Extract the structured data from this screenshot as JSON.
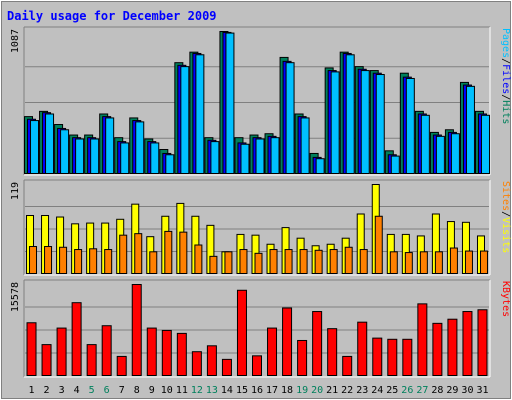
{
  "chart_data": {
    "type": "bar",
    "title": "Daily usage for December 2009",
    "categories": [
      "1",
      "2",
      "3",
      "4",
      "5",
      "6",
      "7",
      "8",
      "9",
      "10",
      "11",
      "12",
      "13",
      "14",
      "15",
      "16",
      "17",
      "18",
      "19",
      "20",
      "21",
      "22",
      "23",
      "24",
      "25",
      "26",
      "27",
      "28",
      "29",
      "30",
      "31"
    ],
    "weekend_days": [
      "5",
      "6",
      "12",
      "13",
      "19",
      "20",
      "26",
      "27"
    ],
    "panels": [
      {
        "name": "pages-files-hits",
        "max_label": "1087",
        "ymax": 1087,
        "legend": [
          {
            "text": "Pages",
            "color": "#00c0ff"
          },
          {
            "text": "/",
            "color": "#000000"
          },
          {
            "text": "Files",
            "color": "#0000ff"
          },
          {
            "text": "/",
            "color": "#000000"
          },
          {
            "text": "Hits",
            "color": "#00805c"
          }
        ],
        "series": [
          {
            "name": "Hits",
            "color": "#00805c",
            "values": [
              440,
              480,
              380,
              300,
              300,
              460,
              280,
              430,
              270,
              190,
              850,
              930,
              280,
              1087,
              280,
              300,
              310,
              890,
              460,
              160,
              810,
              930,
              820,
              790,
              180,
              770,
              480,
              320,
              340,
              700,
              480
            ]
          },
          {
            "name": "Files",
            "color": "#0000ff",
            "values": [
              420,
              470,
              350,
              280,
              280,
              440,
              250,
              410,
              250,
              160,
              830,
              920,
              260,
              1080,
              240,
              280,
              290,
              860,
              440,
              130,
              790,
              920,
              800,
              770,
              150,
              740,
              460,
              300,
              320,
              680,
              460
            ]
          },
          {
            "name": "Pages",
            "color": "#00c0ff",
            "values": [
              410,
              460,
              340,
              270,
              270,
              430,
              240,
              400,
              240,
              150,
              820,
              910,
              250,
              1075,
              230,
              270,
              280,
              850,
              430,
              120,
              780,
              910,
              790,
              760,
              140,
              730,
              450,
              290,
              310,
              670,
              450
            ]
          }
        ]
      },
      {
        "name": "sites-visits",
        "max_label": "119",
        "ymax": 119,
        "legend": [
          {
            "text": "Sites",
            "color": "#ff8000"
          },
          {
            "text": "/",
            "color": "#000000"
          },
          {
            "text": "Visits",
            "color": "#ffff00"
          }
        ],
        "series": [
          {
            "name": "Visits",
            "color": "#ffff00",
            "values": [
              78,
              78,
              76,
              67,
              68,
              68,
              73,
              93,
              50,
              77,
              94,
              77,
              65,
              30,
              53,
              52,
              40,
              62,
              48,
              38,
              40,
              48,
              80,
              119,
              53,
              53,
              51,
              80,
              70,
              69,
              51
            ]
          },
          {
            "name": "Sites",
            "color": "#ff8000",
            "values": [
              37,
              37,
              36,
              33,
              34,
              33,
              52,
              54,
              30,
              57,
              56,
              39,
              24,
              30,
              33,
              28,
              33,
              33,
              33,
              32,
              33,
              36,
              33,
              77,
              30,
              29,
              30,
              30,
              35,
              31,
              31
            ]
          }
        ]
      },
      {
        "name": "kbytes",
        "max_label": "15578",
        "ymax": 15578,
        "legend": [
          {
            "text": "KBytes",
            "color": "#ff0000"
          }
        ],
        "series": [
          {
            "name": "KBytes",
            "color": "#ff0000",
            "values": [
              9100,
              5400,
              8200,
              12500,
              5400,
              8600,
              3400,
              15578,
              8200,
              7800,
              7300,
              4200,
              5200,
              2900,
              14600,
              3500,
              8200,
              11600,
              6100,
              11000,
              8100,
              3400,
              9200,
              6500,
              6300,
              6300,
              12300,
              9000,
              9700,
              11000,
              11300
            ]
          }
        ]
      }
    ]
  }
}
